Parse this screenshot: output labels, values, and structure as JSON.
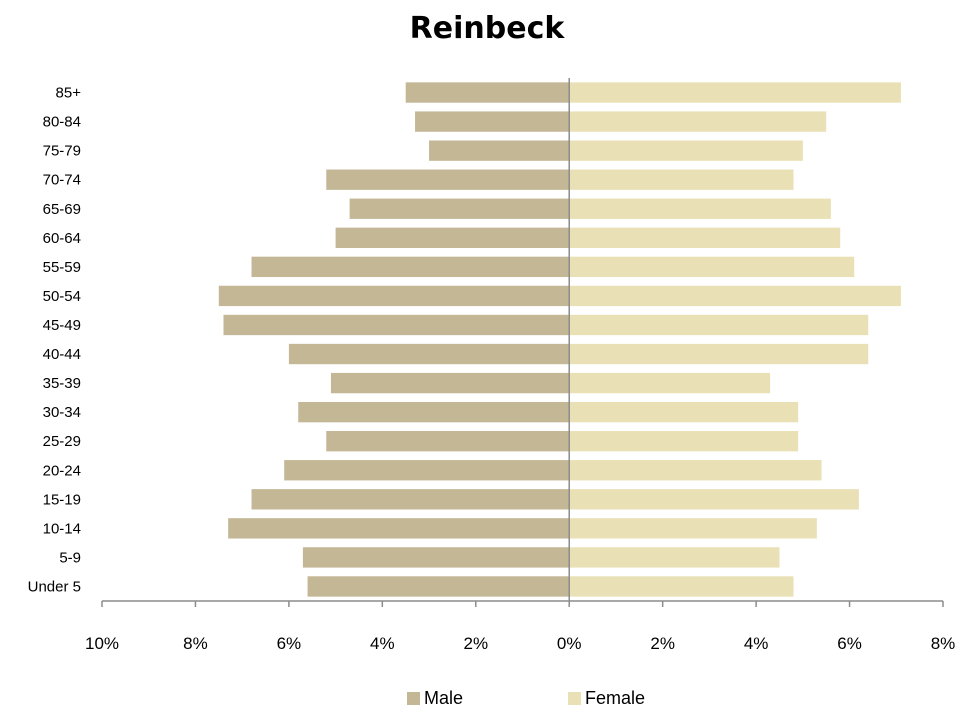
{
  "chart_data": {
    "type": "bar",
    "orientation": "horizontal",
    "title": "Reinbeck",
    "categories": [
      "Under 5",
      "5-9",
      "10-14",
      "15-19",
      "20-24",
      "25-29",
      "30-34",
      "35-39",
      "40-44",
      "45-49",
      "50-54",
      "55-59",
      "60-64",
      "65-69",
      "70-74",
      "75-79",
      "80-84",
      "85+"
    ],
    "series": [
      {
        "name": "Male",
        "color": "#c4b796",
        "values": [
          5.6,
          5.7,
          7.3,
          6.8,
          6.1,
          5.2,
          5.8,
          5.1,
          6.0,
          7.4,
          7.5,
          6.8,
          5.0,
          4.7,
          5.2,
          3.0,
          3.3,
          3.5
        ]
      },
      {
        "name": "Female",
        "color": "#e9e1b5",
        "values": [
          4.8,
          4.5,
          5.3,
          6.2,
          5.4,
          4.9,
          4.9,
          4.3,
          6.4,
          6.4,
          7.1,
          6.1,
          5.8,
          5.6,
          4.8,
          5.0,
          5.5,
          7.1
        ]
      }
    ],
    "xlim": [
      -10,
      8
    ],
    "xticks": [
      -10,
      -8,
      -6,
      -4,
      -2,
      0,
      2,
      4,
      6,
      8
    ],
    "xtick_labels": [
      "10%",
      "8%",
      "6%",
      "4%",
      "2%",
      "0%",
      "2%",
      "4%",
      "6%",
      "8%"
    ],
    "legend_position": "bottom",
    "grid": false
  }
}
